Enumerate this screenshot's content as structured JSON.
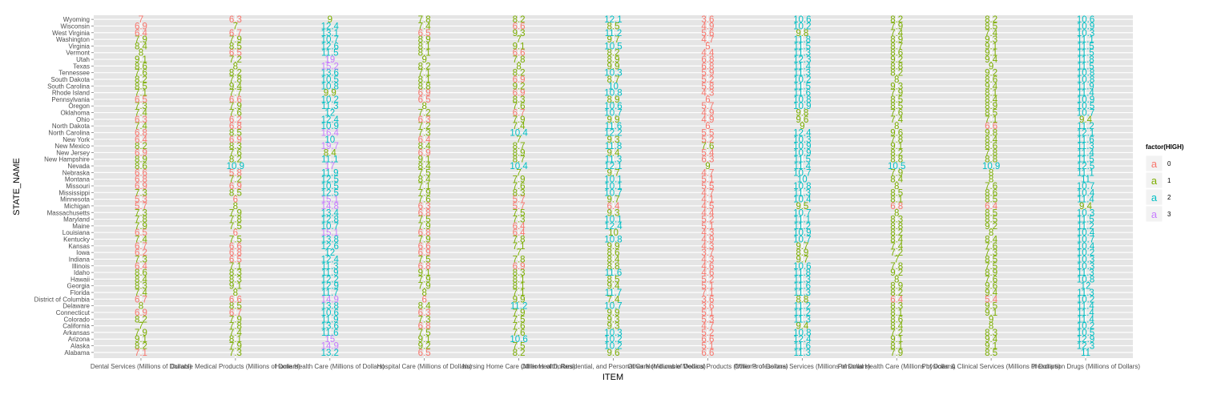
{
  "chart_data": {
    "type": "table",
    "xlabel": "ITEM",
    "ylabel": "STATE_NAME",
    "grid": true,
    "legend": {
      "title": "factor(HIGH)",
      "position": "right",
      "levels": [
        "0",
        "1",
        "2",
        "3"
      ],
      "glyph": "a",
      "colors": {
        "0": "#F8766D",
        "1": "#7CAE00",
        "2": "#00BFC4",
        "3": "#C77CFF"
      }
    },
    "panel_background": "#E5E5E5",
    "items": [
      "Dental Services (Millions of Dollars)",
      "Durable Medical Products (Millions of Dollars)",
      "Home Health Care (Millions of Dollars)",
      "Hospital Care (Millions of Dollars)",
      "Nursing Home Care (Millions of Dollars)",
      "Other Health, Residential, and Personal Care (Millions of Dollars)",
      "Other Non-durable Medical Products (Millions of Dollars)",
      "Other Professional Services (Millions of Dollars)",
      "Personal Health Care (Millions of Dollars)",
      "Physician & Clinical Services (Millions of Dollars)",
      "Prescription Drugs (Millions of Dollars)"
    ],
    "states": [
      "Alabama",
      "Alaska",
      "Arizona",
      "Arkansas",
      "California",
      "Colorado",
      "Connecticut",
      "Delaware",
      "District of Columbia",
      "Florida",
      "Georgia",
      "Hawaii",
      "Idaho",
      "Illinois",
      "Indiana",
      "Iowa",
      "Kansas",
      "Kentucky",
      "Louisiana",
      "Maine",
      "Maryland",
      "Massachusetts",
      "Michigan",
      "Minnesota",
      "Mississippi",
      "Missouri",
      "Montana",
      "Nebraska",
      "Nevada",
      "New Hampshire",
      "New Jersey",
      "New Mexico",
      "New York",
      "North Carolina",
      "North Dakota",
      "Ohio",
      "Oklahoma",
      "Oregon",
      "Pennsylvania",
      "Rhode Island",
      "South Carolina",
      "South Dakota",
      "Tennessee",
      "Texas",
      "Utah",
      "Vermont",
      "Virginia",
      "Washington",
      "West Virginia",
      "Wisconsin",
      "Wyoming"
    ],
    "values": [
      [
        7.1,
        7.3,
        13.2,
        6.5,
        8.2,
        9.6,
        6.6,
        11.3,
        7.9,
        8.5,
        11.0
      ],
      [
        8.2,
        7.9,
        14.9,
        9.2,
        7.5,
        10.2,
        5.1,
        11.6,
        8.1,
        9.1,
        12.3
      ],
      [
        9.1,
        8.1,
        15.0,
        9.1,
        10.6,
        10.2,
        6.6,
        12.4,
        9.1,
        9.4,
        12.9
      ],
      [
        7.9,
        7.4,
        11.6,
        7.5,
        7.6,
        10.3,
        5.2,
        10.8,
        7.2,
        8.3,
        10.5
      ],
      [
        7.0,
        7.8,
        13.6,
        6.8,
        7.6,
        9.3,
        4.7,
        9.4,
        8.4,
        8.0,
        10.2
      ],
      [
        8.2,
        7.9,
        11.9,
        7.3,
        7.5,
        9.3,
        5.3,
        11.3,
        8.6,
        9.0,
        11.4
      ],
      [
        6.9,
        6.7,
        10.6,
        6.3,
        7.9,
        9.9,
        5.1,
        11.2,
        8.1,
        9.1,
        11.4
      ],
      [
        8.0,
        8.5,
        13.8,
        8.4,
        11.2,
        10.7,
        3.6,
        11.2,
        8.3,
        9.5,
        11.4
      ],
      [
        6.7,
        6.6,
        14.9,
        6.0,
        9.9,
        7.4,
        3.6,
        8.8,
        6.4,
        5.4,
        10.2
      ],
      [
        7.4,
        8.0,
        11.7,
        8.0,
        7.1,
        11.7,
        7.1,
        11.3,
        8.2,
        9.4,
        11.3
      ],
      [
        8.3,
        9.1,
        12.9,
        7.9,
        8.1,
        9.4,
        5.1,
        11.6,
        8.9,
        9.6,
        12.0
      ],
      [
        8.4,
        8.3,
        12.2,
        7.9,
        8.1,
        8.5,
        5.2,
        11.3,
        8.0,
        7.6,
        10.8
      ],
      [
        8.6,
        8.3,
        11.9,
        9.1,
        8.3,
        11.6,
        4.6,
        11.8,
        9.2,
        8.9,
        11.3
      ],
      [
        6.4,
        7.1,
        11.3,
        6.8,
        6.9,
        8.8,
        4.6,
        10.6,
        7.8,
        7.5,
        10.3
      ],
      [
        7.3,
        6.5,
        12.4,
        7.5,
        7.8,
        8.4,
        4.3,
        9.7,
        7.0,
        8.5,
        10.3
      ],
      [
        6.2,
        6.8,
        12.0,
        6.9,
        7.0,
        8.6,
        3.7,
        8.9,
        7.2,
        7.3,
        10.2
      ],
      [
        6.7,
        6.6,
        12.6,
        6.6,
        7.1,
        9.9,
        4.3,
        9.7,
        7.4,
        7.6,
        10.4
      ],
      [
        7.4,
        7.5,
        13.8,
        7.9,
        7.8,
        10.8,
        4.9,
        10.7,
        8.4,
        8.4,
        10.7
      ],
      [
        6.5,
        6.0,
        15.1,
        6.8,
        6.4,
        10.0,
        4.3,
        10.9,
        8.2,
        8.0,
        10.4
      ],
      [
        7.9,
        7.5,
        10.7,
        7.9,
        6.4,
        12.4,
        5.1,
        11.2,
        8.8,
        9.2,
        11.2
      ],
      [
        7.8,
        7.8,
        12.8,
        7.5,
        7.3,
        10.1,
        5.2,
        11.1,
        8.3,
        8.5,
        11.5
      ],
      [
        7.3,
        7.9,
        13.4,
        6.8,
        7.5,
        9.3,
        4.4,
        10.7,
        8.0,
        8.5,
        10.3
      ],
      [
        5.7,
        8.0,
        14.8,
        6.3,
        5.7,
        6.4,
        4.5,
        9.5,
        6.8,
        6.4,
        9.4
      ],
      [
        5.3,
        6.0,
        15.1,
        7.6,
        5.7,
        9.7,
        4.1,
        10.4,
        8.1,
        8.5,
        11.4
      ],
      [
        7.3,
        8.5,
        12.5,
        7.9,
        8.3,
        10.7,
        4.7,
        11.3,
        8.5,
        8.6,
        10.4
      ],
      [
        6.9,
        6.9,
        10.5,
        7.1,
        7.6,
        10.1,
        5.5,
        10.8,
        8.0,
        7.6,
        10.7
      ],
      [
        6.8,
        7.2,
        12.5,
        8.4,
        7.9,
        10.1,
        5.1,
        10.0,
        8.4,
        8.0,
        11.0
      ],
      [
        6.6,
        5.8,
        11.9,
        7.5,
        7.0,
        9.7,
        4.7,
        10.7,
        7.9,
        8.0,
        11.1
      ],
      [
        8.6,
        10.9,
        17.0,
        8.4,
        10.4,
        12.1,
        9.0,
        11.4,
        10.5,
        10.9,
        12.5
      ],
      [
        8.9,
        8.2,
        11.1,
        9.1,
        8.7,
        11.3,
        6.3,
        11.5,
        8.8,
        8.8,
        11.5
      ],
      [
        6.9,
        7.6,
        8.4,
        6.9,
        8.9,
        9.4,
        5.4,
        10.9,
        8.2,
        7.8,
        11.4
      ],
      [
        8.2,
        8.3,
        19.7,
        8.4,
        8.7,
        11.8,
        7.6,
        10.9,
        9.1,
        8.6,
        11.3
      ],
      [
        6.4,
        6.9,
        10.0,
        6.4,
        7.0,
        9.3,
        5.2,
        10.3,
        7.8,
        8.4,
        11.6
      ],
      [
        6.8,
        8.5,
        16.4,
        7.3,
        10.4,
        12.2,
        5.5,
        12.4,
        9.6,
        9.8,
        12.1
      ],
      [
        7.4,
        6.8,
        10.9,
        7.2,
        7.4,
        11.6,
        6.0,
        9.0,
        8.0,
        6.6,
        11.2
      ],
      [
        6.3,
        6.2,
        12.4,
        6.3,
        7.9,
        9.9,
        4.9,
        9.6,
        7.4,
        7.1,
        9.4
      ],
      [
        7.4,
        7.6,
        12.0,
        7.2,
        6.7,
        10.7,
        4.9,
        9.8,
        7.6,
        8.5,
        10.7
      ],
      [
        7.3,
        7.9,
        11.3,
        8.0,
        7.6,
        10.6,
        5.7,
        10.9,
        8.5,
        8.9,
        10.5
      ],
      [
        6.5,
        6.6,
        10.2,
        6.5,
        8.3,
        8.9,
        6.0,
        10.8,
        8.5,
        8.4,
        10.9
      ],
      [
        7.1,
        7.7,
        9.9,
        6.9,
        6.9,
        10.8,
        4.3,
        11.6,
        7.9,
        8.1,
        11.4
      ],
      [
        8.5,
        9.4,
        10.8,
        8.8,
        9.2,
        10.0,
        5.8,
        11.5,
        9.3,
        9.4,
        11.9
      ],
      [
        8.2,
        7.8,
        10.5,
        8.1,
        6.9,
        8.7,
        5.2,
        10.2,
        8.0,
        8.6,
        10.8
      ],
      [
        7.6,
        8.2,
        13.6,
        7.1,
        8.2,
        10.3,
        5.9,
        11.3,
        8.2,
        9.2,
        10.8
      ],
      [
        8.6,
        8.0,
        15.2,
        8.2,
        8.0,
        9.9,
        6.8,
        11.4,
        8.8,
        9.0,
        11.5
      ],
      [
        9.1,
        7.2,
        19.0,
        9.0,
        7.8,
        8.9,
        6.8,
        12.3,
        9.2,
        9.4,
        11.8
      ],
      [
        8.0,
        6.5,
        11.5,
        8.1,
        6.6,
        8.2,
        4.4,
        11.3,
        8.6,
        9.1,
        11.5
      ],
      [
        8.4,
        8.5,
        12.6,
        8.1,
        9.1,
        10.5,
        5.0,
        11.5,
        8.7,
        9.1,
        11.5
      ],
      [
        7.9,
        7.9,
        10.7,
        8.9,
        7.0,
        9.7,
        4.7,
        11.8,
        8.9,
        9.3,
        11.1
      ],
      [
        6.4,
        6.7,
        13.1,
        6.5,
        9.3,
        11.2,
        5.6,
        9.8,
        7.4,
        7.4,
        10.3
      ],
      [
        6.9,
        7.0,
        12.4,
        7.4,
        6.6,
        8.5,
        4.9,
        10.2,
        7.9,
        8.5,
        10.9
      ],
      [
        7.0,
        6.3,
        9.0,
        7.8,
        8.2,
        12.1,
        3.6,
        10.6,
        8.2,
        8.2,
        10.6
      ]
    ],
    "high_factor": [
      [
        0,
        1,
        2,
        0,
        1,
        1,
        0,
        2,
        1,
        1,
        2
      ],
      [
        1,
        1,
        3,
        1,
        1,
        2,
        0,
        2,
        1,
        1,
        2
      ],
      [
        1,
        1,
        3,
        1,
        2,
        2,
        0,
        2,
        1,
        1,
        2
      ],
      [
        1,
        1,
        2,
        1,
        1,
        2,
        0,
        2,
        1,
        1,
        2
      ],
      [
        1,
        1,
        2,
        0,
        1,
        1,
        0,
        1,
        1,
        1,
        2
      ],
      [
        1,
        1,
        2,
        1,
        1,
        1,
        0,
        2,
        1,
        1,
        2
      ],
      [
        0,
        0,
        2,
        0,
        1,
        1,
        0,
        2,
        1,
        1,
        2
      ],
      [
        1,
        1,
        2,
        1,
        2,
        2,
        0,
        2,
        1,
        1,
        2
      ],
      [
        0,
        0,
        3,
        0,
        1,
        1,
        0,
        1,
        0,
        0,
        2
      ],
      [
        1,
        1,
        2,
        1,
        1,
        2,
        0,
        2,
        1,
        1,
        2
      ],
      [
        1,
        1,
        2,
        1,
        1,
        1,
        0,
        2,
        1,
        1,
        2
      ],
      [
        1,
        1,
        2,
        1,
        1,
        1,
        0,
        2,
        1,
        1,
        2
      ],
      [
        1,
        1,
        2,
        1,
        1,
        2,
        0,
        2,
        1,
        1,
        2
      ],
      [
        0,
        1,
        2,
        0,
        0,
        1,
        0,
        2,
        1,
        1,
        2
      ],
      [
        1,
        0,
        2,
        1,
        1,
        1,
        0,
        1,
        1,
        1,
        2
      ],
      [
        0,
        0,
        2,
        0,
        1,
        1,
        0,
        1,
        1,
        1,
        2
      ],
      [
        0,
        0,
        2,
        0,
        1,
        1,
        0,
        1,
        1,
        1,
        2
      ],
      [
        1,
        1,
        2,
        1,
        1,
        2,
        0,
        2,
        1,
        1,
        2
      ],
      [
        0,
        0,
        3,
        0,
        0,
        1,
        0,
        2,
        1,
        1,
        2
      ],
      [
        1,
        1,
        2,
        1,
        0,
        2,
        0,
        2,
        1,
        1,
        2
      ],
      [
        1,
        1,
        2,
        1,
        1,
        2,
        0,
        2,
        1,
        1,
        2
      ],
      [
        1,
        1,
        2,
        0,
        1,
        1,
        0,
        2,
        1,
        1,
        2
      ],
      [
        0,
        1,
        3,
        0,
        0,
        0,
        0,
        1,
        0,
        0,
        1
      ],
      [
        0,
        0,
        3,
        1,
        0,
        1,
        0,
        2,
        1,
        1,
        2
      ],
      [
        1,
        1,
        2,
        1,
        1,
        2,
        0,
        2,
        1,
        1,
        2
      ],
      [
        0,
        0,
        2,
        1,
        1,
        2,
        0,
        2,
        1,
        1,
        2
      ],
      [
        0,
        1,
        2,
        1,
        1,
        2,
        0,
        2,
        1,
        1,
        2
      ],
      [
        0,
        0,
        2,
        1,
        1,
        1,
        0,
        2,
        1,
        1,
        2
      ],
      [
        1,
        2,
        3,
        1,
        2,
        2,
        1,
        2,
        2,
        2,
        2
      ],
      [
        1,
        1,
        2,
        1,
        1,
        2,
        0,
        2,
        1,
        1,
        2
      ],
      [
        0,
        1,
        1,
        0,
        1,
        1,
        0,
        2,
        1,
        1,
        2
      ],
      [
        1,
        1,
        3,
        1,
        1,
        2,
        1,
        2,
        1,
        1,
        2
      ],
      [
        0,
        0,
        2,
        0,
        1,
        1,
        0,
        2,
        1,
        1,
        2
      ],
      [
        0,
        1,
        3,
        1,
        2,
        2,
        0,
        2,
        1,
        1,
        2
      ],
      [
        1,
        0,
        2,
        1,
        1,
        2,
        0,
        1,
        1,
        0,
        2
      ],
      [
        0,
        0,
        2,
        0,
        1,
        1,
        0,
        1,
        1,
        1,
        1
      ],
      [
        1,
        1,
        2,
        1,
        0,
        2,
        0,
        1,
        1,
        1,
        2
      ],
      [
        1,
        1,
        2,
        1,
        1,
        2,
        0,
        2,
        1,
        1,
        2
      ],
      [
        0,
        0,
        2,
        0,
        1,
        1,
        0,
        2,
        1,
        1,
        2
      ],
      [
        1,
        1,
        1,
        0,
        0,
        2,
        0,
        2,
        1,
        1,
        2
      ],
      [
        1,
        1,
        2,
        1,
        1,
        2,
        0,
        2,
        1,
        1,
        2
      ],
      [
        1,
        1,
        2,
        1,
        0,
        1,
        0,
        2,
        1,
        1,
        2
      ],
      [
        1,
        1,
        2,
        1,
        1,
        2,
        0,
        2,
        1,
        1,
        2
      ],
      [
        1,
        1,
        3,
        1,
        1,
        1,
        0,
        2,
        1,
        1,
        2
      ],
      [
        1,
        1,
        3,
        1,
        1,
        1,
        0,
        2,
        1,
        1,
        2
      ],
      [
        1,
        0,
        2,
        1,
        0,
        1,
        0,
        2,
        1,
        1,
        2
      ],
      [
        1,
        1,
        2,
        1,
        1,
        2,
        0,
        2,
        1,
        1,
        2
      ],
      [
        1,
        1,
        2,
        1,
        1,
        1,
        0,
        2,
        1,
        1,
        2
      ],
      [
        0,
        0,
        2,
        0,
        1,
        2,
        0,
        1,
        1,
        1,
        2
      ],
      [
        0,
        1,
        2,
        1,
        0,
        1,
        0,
        2,
        1,
        1,
        2
      ],
      [
        0,
        0,
        1,
        1,
        1,
        2,
        0,
        2,
        1,
        1,
        2
      ]
    ]
  }
}
